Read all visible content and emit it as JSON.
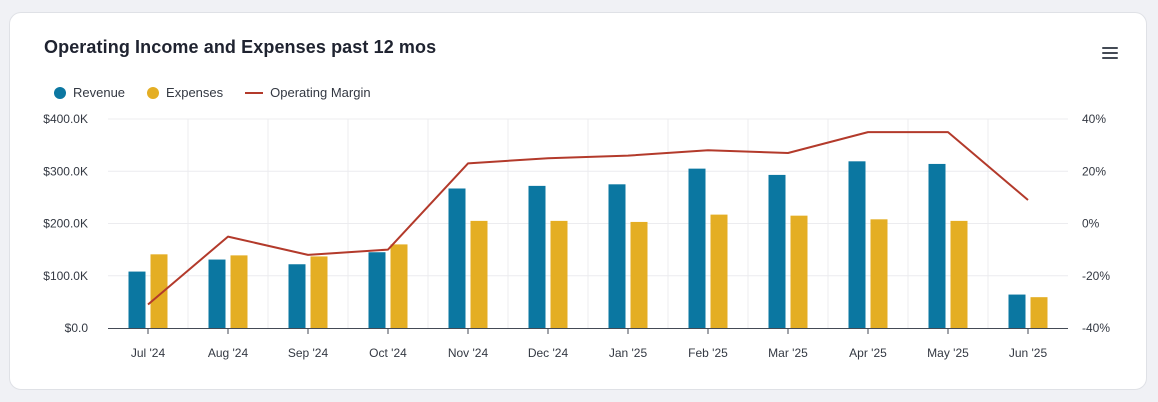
{
  "card": {
    "title": "Operating Income and Expenses past 12 mos",
    "menu_icon": "hamburger-menu-icon"
  },
  "chart_data": {
    "type": "bar",
    "title": "Operating Income and Expenses past 12 mos",
    "categories": [
      "Jul '24",
      "Aug '24",
      "Sep '24",
      "Oct '24",
      "Nov '24",
      "Dec '24",
      "Jan '25",
      "Feb '25",
      "Mar '25",
      "Apr '25",
      "May '25",
      "Jun '25"
    ],
    "series": [
      {
        "name": "Revenue",
        "type": "bar",
        "axis": "left",
        "color": "#0b77a1",
        "values": [
          108000,
          131000,
          122000,
          145000,
          267000,
          272000,
          275000,
          305000,
          293000,
          319000,
          314000,
          64000
        ]
      },
      {
        "name": "Expenses",
        "type": "bar",
        "axis": "left",
        "color": "#e4ae24",
        "values": [
          141000,
          139000,
          137000,
          160000,
          205000,
          205000,
          203000,
          217000,
          215000,
          208000,
          205000,
          59000
        ]
      },
      {
        "name": "Operating Margin",
        "type": "line",
        "axis": "right",
        "color": "#b33a2b",
        "values": [
          -31,
          -5,
          -12,
          -10,
          23,
          25,
          26,
          28,
          27,
          35,
          35,
          9
        ]
      }
    ],
    "ylim": [
      0,
      400000
    ],
    "y_ticks": [
      "$0.0",
      "$100.0K",
      "$200.0K",
      "$300.0K",
      "$400.0K"
    ],
    "y2lim": [
      -40,
      40
    ],
    "y2_ticks": [
      "-40%",
      "-20%",
      "0%",
      "20%",
      "40%"
    ],
    "grid": true,
    "legend_position": "top-left"
  }
}
